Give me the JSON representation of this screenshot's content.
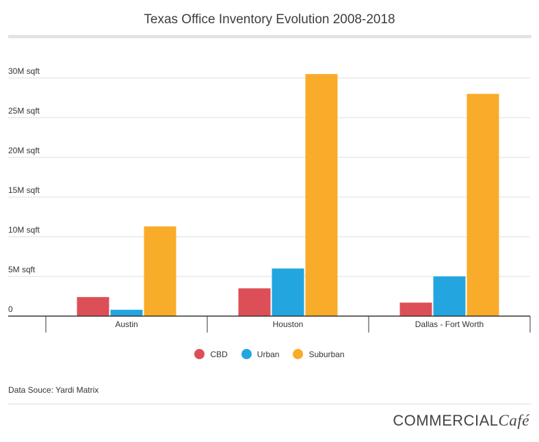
{
  "title": "Texas Office Inventory Evolution 2008-2018",
  "source": "Data Souce: Yardi Matrix",
  "logo": {
    "main": "COMMERCIAL",
    "script": "Café"
  },
  "chart_data": {
    "type": "bar",
    "title": "Texas Office Inventory Evolution 2008-2018",
    "categories": [
      "Austin",
      "Houston",
      "Dallas - Fort Worth"
    ],
    "series": [
      {
        "name": "CBD",
        "color": "#dc4f57",
        "values": [
          2.4,
          3.5,
          1.7
        ]
      },
      {
        "name": "Urban",
        "color": "#23a6df",
        "values": [
          0.8,
          6.0,
          5.0
        ]
      },
      {
        "name": "Suburban",
        "color": "#f9ac2a",
        "values": [
          11.3,
          30.5,
          28.0
        ]
      }
    ],
    "yticks": [
      {
        "value": 0,
        "label": "0"
      },
      {
        "value": 5,
        "label": "5M sqft"
      },
      {
        "value": 10,
        "label": "10M sqft"
      },
      {
        "value": 15,
        "label": "15M sqft"
      },
      {
        "value": 20,
        "label": "20M sqft"
      },
      {
        "value": 25,
        "label": "25M sqft"
      },
      {
        "value": 30,
        "label": "30M sqft"
      }
    ],
    "ylim": [
      0,
      30
    ],
    "unit": "M sqft",
    "grid": true,
    "legend_position": "bottom"
  }
}
